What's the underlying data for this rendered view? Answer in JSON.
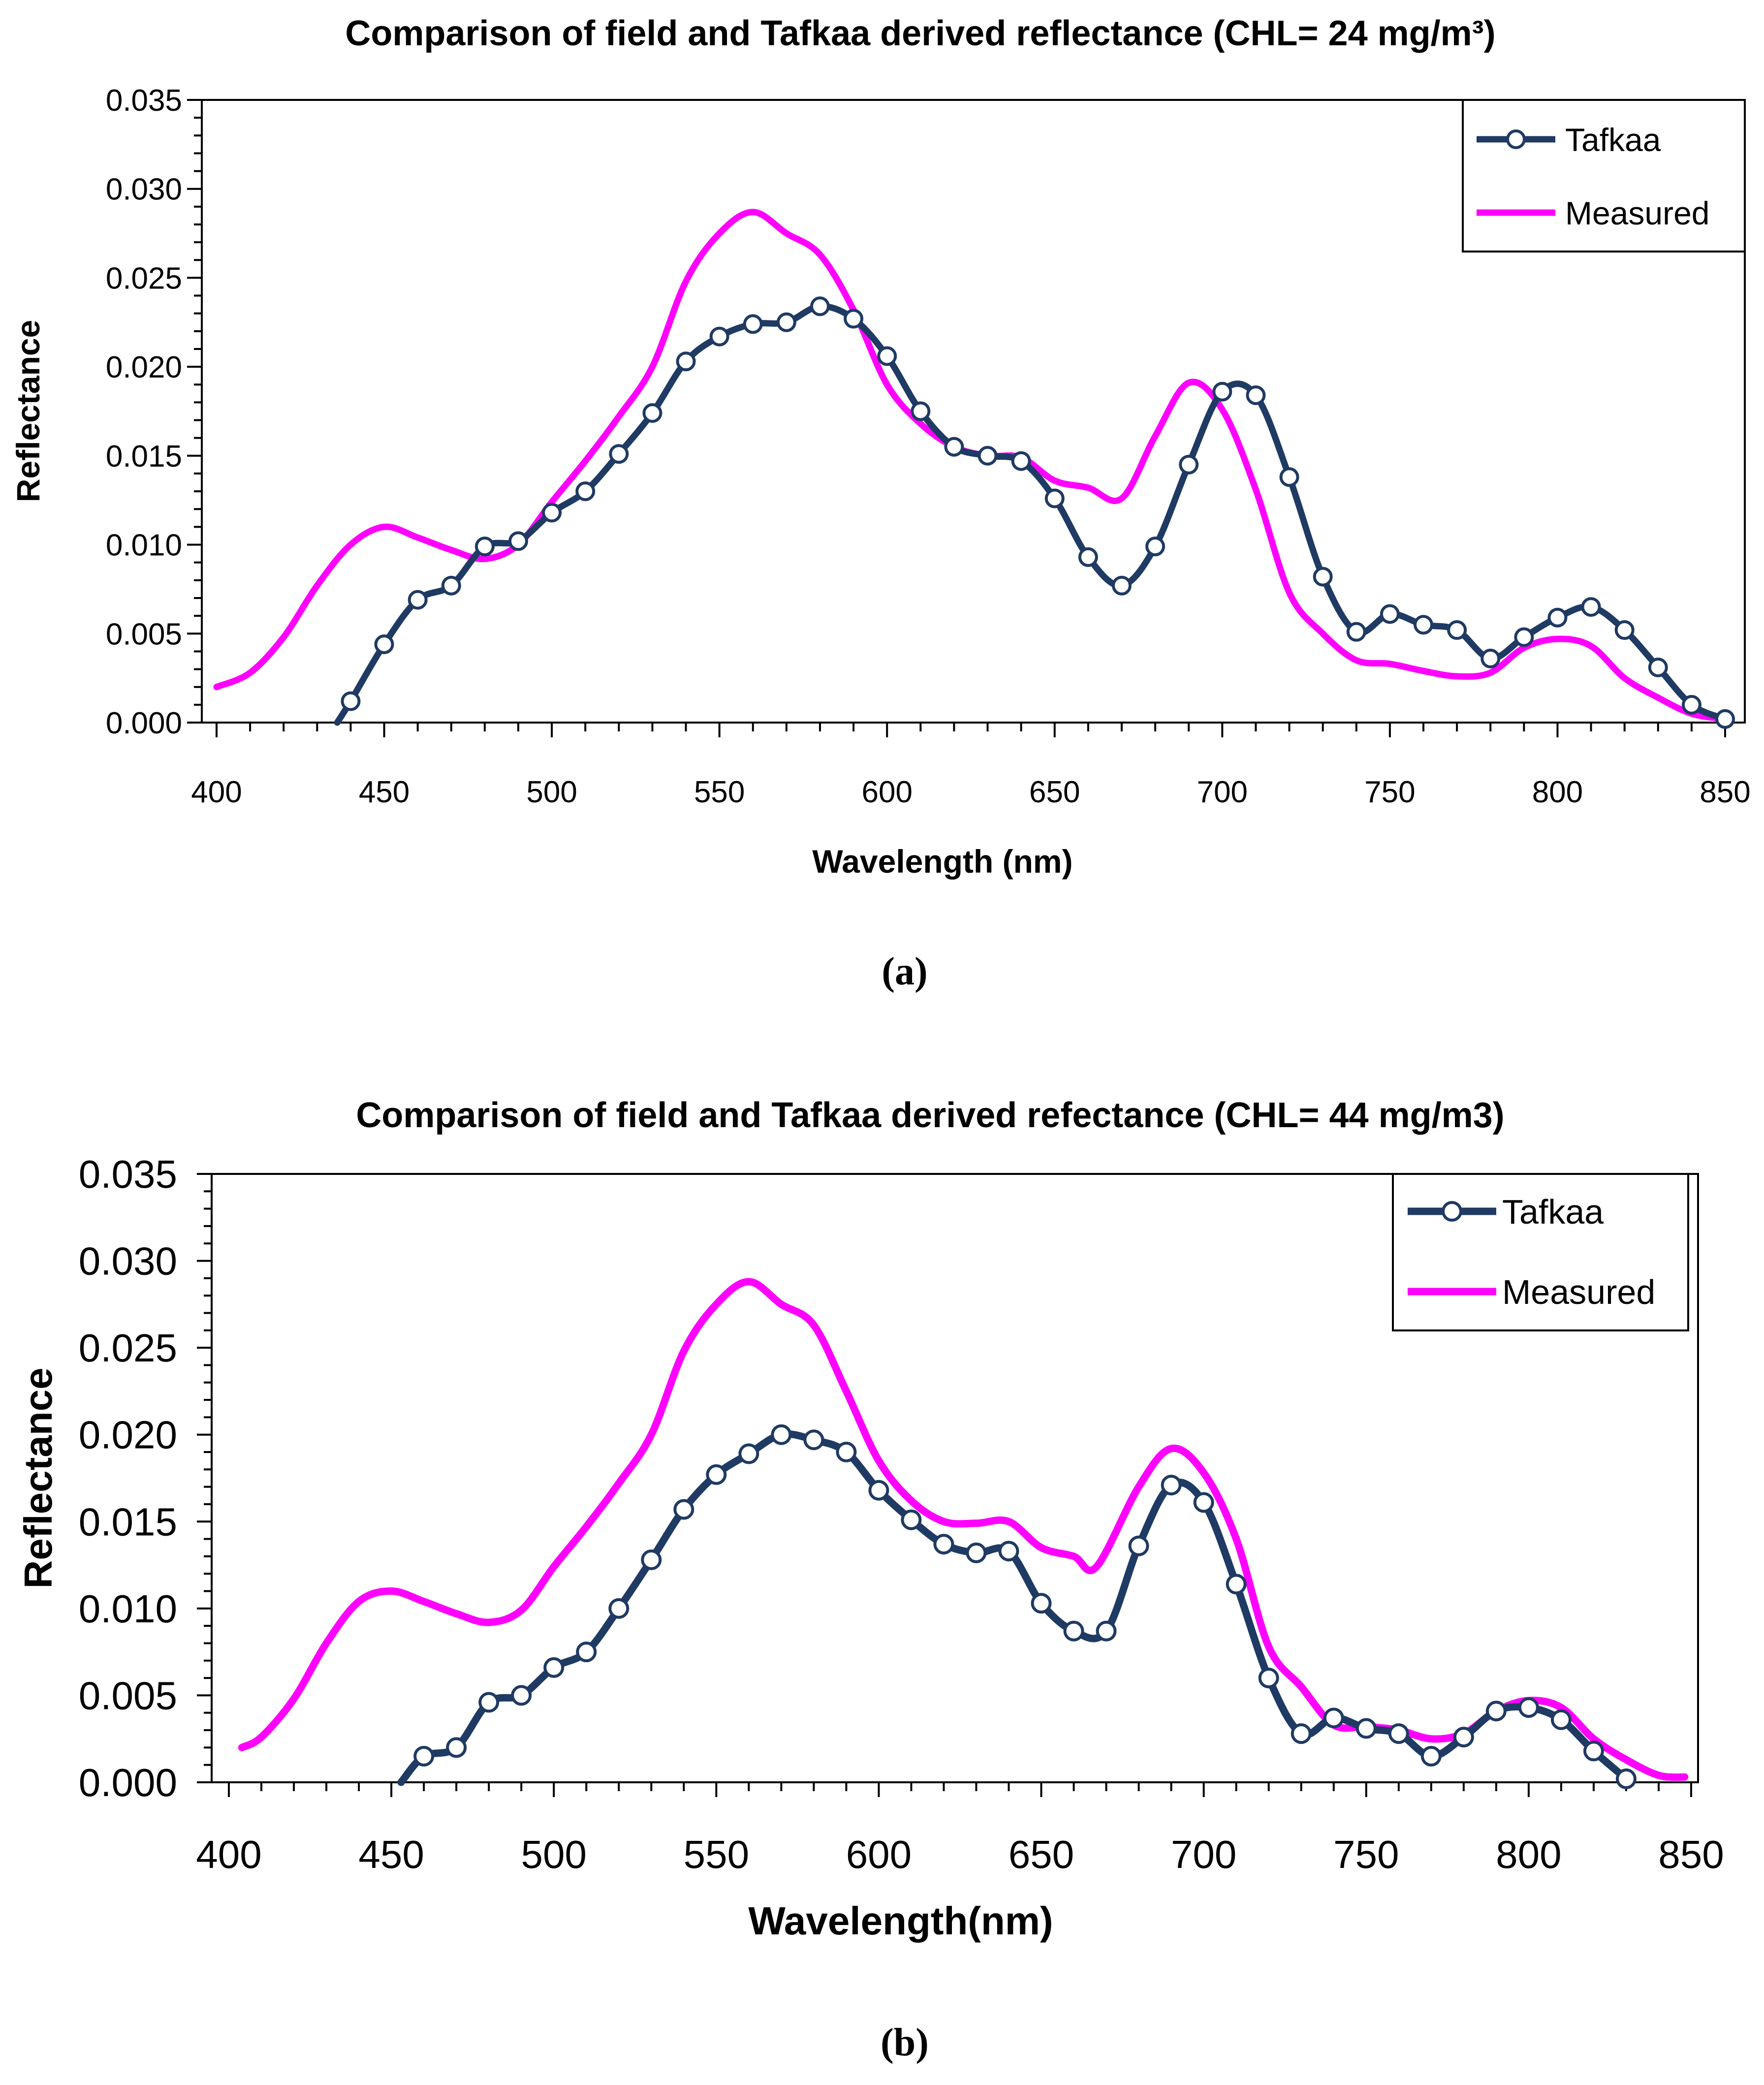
{
  "colors": {
    "tafkaa": "#1f3a63",
    "measured": "#ff00ff",
    "axis": "#000000"
  },
  "chart_data": [
    {
      "type": "line",
      "title": "Comparison of field and Tafkaa derived reflectance (CHL= 24 mg/m³)",
      "xlabel": "Wavelength (nm)",
      "ylabel": "Reflectance",
      "caption": "(a)",
      "xlim": [
        400,
        850
      ],
      "ylim": [
        0,
        0.035
      ],
      "x_ticks": [
        "400",
        "450",
        "500",
        "550",
        "600",
        "650",
        "700",
        "750",
        "800",
        "850"
      ],
      "y_ticks": [
        "0.000",
        "0.005",
        "0.010",
        "0.015",
        "0.020",
        "0.025",
        "0.030",
        "0.035"
      ],
      "legend_position": "top-right",
      "series": [
        {
          "name": "Tafkaa",
          "marker": "circle",
          "points": [
            [
              436,
              0
            ],
            [
              440,
              0.0012
            ],
            [
              450,
              0.0044
            ],
            [
              460,
              0.0069
            ],
            [
              470,
              0.0077
            ],
            [
              480,
              0.0099
            ],
            [
              490,
              0.0102
            ],
            [
              500,
              0.0118
            ],
            [
              510,
              0.013
            ],
            [
              520,
              0.0151
            ],
            [
              530,
              0.0174
            ],
            [
              540,
              0.0203
            ],
            [
              550,
              0.0217
            ],
            [
              560,
              0.0224
            ],
            [
              570,
              0.0225
            ],
            [
              580,
              0.0234
            ],
            [
              590,
              0.0227
            ],
            [
              600,
              0.0206
            ],
            [
              610,
              0.0175
            ],
            [
              620,
              0.0155
            ],
            [
              630,
              0.015
            ],
            [
              640,
              0.0147
            ],
            [
              650,
              0.0126
            ],
            [
              660,
              0.0093
            ],
            [
              670,
              0.0077
            ],
            [
              680,
              0.0099
            ],
            [
              690,
              0.0145
            ],
            [
              700,
              0.0186
            ],
            [
              710,
              0.0184
            ],
            [
              720,
              0.0138
            ],
            [
              730,
              0.0082
            ],
            [
              740,
              0.0051
            ],
            [
              750,
              0.0061
            ],
            [
              760,
              0.0055
            ],
            [
              770,
              0.0052
            ],
            [
              780,
              0.0036
            ],
            [
              790,
              0.0048
            ],
            [
              800,
              0.0059
            ],
            [
              810,
              0.0065
            ],
            [
              820,
              0.0052
            ],
            [
              830,
              0.0031
            ],
            [
              840,
              0.001
            ],
            [
              850,
              0.0002
            ]
          ],
          "markers_from": 1
        },
        {
          "name": "Measured",
          "marker": "none",
          "points": [
            [
              400,
              0.002
            ],
            [
              410,
              0.0028
            ],
            [
              420,
              0.0048
            ],
            [
              430,
              0.0077
            ],
            [
              440,
              0.01
            ],
            [
              450,
              0.011
            ],
            [
              460,
              0.0104
            ],
            [
              470,
              0.0097
            ],
            [
              480,
              0.0092
            ],
            [
              490,
              0.01
            ],
            [
              500,
              0.0124
            ],
            [
              510,
              0.0147
            ],
            [
              520,
              0.0172
            ],
            [
              530,
              0.02
            ],
            [
              540,
              0.0248
            ],
            [
              550,
              0.0275
            ],
            [
              560,
              0.0287
            ],
            [
              570,
              0.0275
            ],
            [
              580,
              0.0263
            ],
            [
              590,
              0.0232
            ],
            [
              600,
              0.019
            ],
            [
              610,
              0.0168
            ],
            [
              620,
              0.0155
            ],
            [
              630,
              0.015
            ],
            [
              640,
              0.0149
            ],
            [
              650,
              0.0136
            ],
            [
              660,
              0.0132
            ],
            [
              670,
              0.0126
            ],
            [
              680,
              0.0161
            ],
            [
              690,
              0.0191
            ],
            [
              700,
              0.0176
            ],
            [
              710,
              0.0131
            ],
            [
              720,
              0.0073
            ],
            [
              730,
              0.005
            ],
            [
              740,
              0.0035
            ],
            [
              750,
              0.0033
            ],
            [
              760,
              0.0029
            ],
            [
              770,
              0.0026
            ],
            [
              780,
              0.0028
            ],
            [
              790,
              0.0042
            ],
            [
              800,
              0.0047
            ],
            [
              810,
              0.0043
            ],
            [
              820,
              0.0025
            ],
            [
              830,
              0.0014
            ],
            [
              840,
              0.0005
            ],
            [
              850,
              0.0002
            ]
          ]
        }
      ]
    },
    {
      "type": "line",
      "title": "Comparison of field and Tafkaa derived refectance (CHL= 44 mg/m3)",
      "xlabel": "Wavelength(nm)",
      "ylabel": "Reflectance",
      "caption": "(b)",
      "xlim": [
        400,
        850
      ],
      "ylim": [
        0,
        0.035
      ],
      "x_ticks": [
        "400",
        "450",
        "500",
        "550",
        "600",
        "650",
        "700",
        "750",
        "800",
        "850"
      ],
      "y_ticks": [
        "0.000",
        "0.005",
        "0.010",
        "0.015",
        "0.020",
        "0.025",
        "0.030",
        "0.035"
      ],
      "legend_position": "top-right",
      "series": [
        {
          "name": "Tafkaa",
          "marker": "circle",
          "points": [
            [
              453,
              0
            ],
            [
              460,
              0.0015
            ],
            [
              470,
              0.002
            ],
            [
              480,
              0.0046
            ],
            [
              490,
              0.005
            ],
            [
              500,
              0.0066
            ],
            [
              510,
              0.0075
            ],
            [
              520,
              0.01
            ],
            [
              530,
              0.0128
            ],
            [
              540,
              0.0157
            ],
            [
              550,
              0.0177
            ],
            [
              560,
              0.0189
            ],
            [
              570,
              0.02
            ],
            [
              580,
              0.0197
            ],
            [
              590,
              0.019
            ],
            [
              600,
              0.0168
            ],
            [
              610,
              0.0151
            ],
            [
              620,
              0.0137
            ],
            [
              630,
              0.0132
            ],
            [
              640,
              0.0133
            ],
            [
              650,
              0.0103
            ],
            [
              660,
              0.0087
            ],
            [
              670,
              0.0087
            ],
            [
              680,
              0.0136
            ],
            [
              690,
              0.0171
            ],
            [
              700,
              0.0161
            ],
            [
              710,
              0.0114
            ],
            [
              720,
              0.006
            ],
            [
              730,
              0.0028
            ],
            [
              740,
              0.0037
            ],
            [
              750,
              0.0031
            ],
            [
              760,
              0.0028
            ],
            [
              770,
              0.0015
            ],
            [
              780,
              0.0026
            ],
            [
              790,
              0.0041
            ],
            [
              800,
              0.0043
            ],
            [
              810,
              0.0036
            ],
            [
              820,
              0.0018
            ],
            [
              830,
              0.0002
            ]
          ],
          "markers_from": 1
        },
        {
          "name": "Measured",
          "marker": "none",
          "points": [
            [
              404,
              0.002
            ],
            [
              410,
              0.0026
            ],
            [
              420,
              0.0048
            ],
            [
              430,
              0.008
            ],
            [
              440,
              0.0104
            ],
            [
              450,
              0.011
            ],
            [
              460,
              0.0104
            ],
            [
              470,
              0.0097
            ],
            [
              480,
              0.0092
            ],
            [
              490,
              0.0099
            ],
            [
              500,
              0.0124
            ],
            [
              510,
              0.0147
            ],
            [
              520,
              0.0172
            ],
            [
              530,
              0.02
            ],
            [
              540,
              0.0248
            ],
            [
              550,
              0.0275
            ],
            [
              560,
              0.0288
            ],
            [
              570,
              0.0275
            ],
            [
              580,
              0.0263
            ],
            [
              590,
              0.0225
            ],
            [
              600,
              0.0185
            ],
            [
              610,
              0.0162
            ],
            [
              620,
              0.015
            ],
            [
              630,
              0.0149
            ],
            [
              640,
              0.015
            ],
            [
              650,
              0.0135
            ],
            [
              660,
              0.013
            ],
            [
              667,
              0.0124
            ],
            [
              680,
              0.017
            ],
            [
              690,
              0.0192
            ],
            [
              700,
              0.0178
            ],
            [
              710,
              0.014
            ],
            [
              720,
              0.0078
            ],
            [
              730,
              0.0055
            ],
            [
              740,
              0.0033
            ],
            [
              750,
              0.0032
            ],
            [
              760,
              0.003
            ],
            [
              770,
              0.0025
            ],
            [
              780,
              0.0028
            ],
            [
              790,
              0.0041
            ],
            [
              800,
              0.0047
            ],
            [
              810,
              0.0043
            ],
            [
              820,
              0.0025
            ],
            [
              830,
              0.0013
            ],
            [
              840,
              0.0004
            ],
            [
              848,
              0.0003
            ]
          ]
        }
      ]
    }
  ]
}
